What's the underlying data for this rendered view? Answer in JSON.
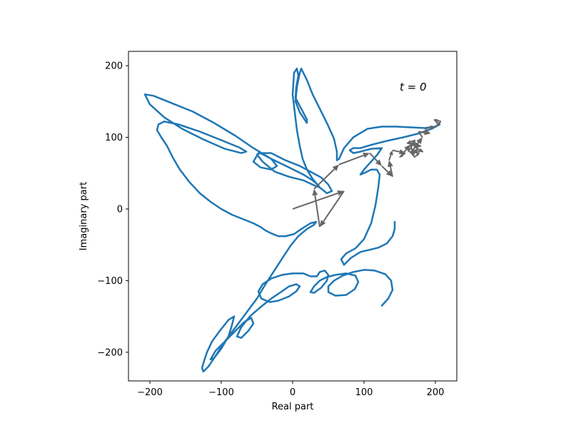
{
  "chart_data": {
    "type": "line",
    "title": "",
    "xlabel": "Real part",
    "ylabel": "Imaginary part",
    "xlim": [
      -230,
      230
    ],
    "ylim": [
      -240,
      220
    ],
    "x_ticks": [
      -200,
      -100,
      0,
      100,
      200
    ],
    "x_tick_labels": [
      "−200",
      "−100",
      "0",
      "100",
      "200"
    ],
    "y_ticks": [
      -200,
      -100,
      0,
      100,
      200
    ],
    "y_tick_labels": [
      "−200",
      "−100",
      "0",
      "100",
      "200"
    ],
    "grid": false,
    "annotation": {
      "text": "t = 0",
      "x": 150,
      "y": 165
    },
    "colors": {
      "curve": "#1f77b4",
      "arrows": "#666666"
    },
    "series": [
      {
        "points": [
          [
            125,
            -135
          ],
          [
            134,
            -125
          ],
          [
            140,
            -113
          ],
          [
            138,
            -100
          ],
          [
            130,
            -91
          ],
          [
            115,
            -86
          ],
          [
            100,
            -85
          ],
          [
            85,
            -88
          ],
          [
            70,
            -93
          ],
          [
            58,
            -100
          ],
          [
            50,
            -108
          ],
          [
            50,
            -116
          ],
          [
            60,
            -121
          ],
          [
            75,
            -120
          ],
          [
            87,
            -112
          ],
          [
            92,
            -102
          ],
          [
            88,
            -93
          ],
          [
            75,
            -90
          ],
          [
            60,
            -92
          ],
          [
            48,
            -95
          ],
          [
            38,
            -100
          ],
          [
            30,
            -108
          ],
          [
            25,
            -116
          ],
          [
            30,
            -117
          ],
          [
            40,
            -110
          ],
          [
            48,
            -100
          ],
          [
            50,
            -92
          ],
          [
            45,
            -86
          ],
          [
            38,
            -88
          ],
          [
            34,
            -94
          ],
          [
            25,
            -94
          ],
          [
            15,
            -90
          ],
          [
            0,
            -90
          ],
          [
            -15,
            -92
          ],
          [
            -30,
            -97
          ],
          [
            -42,
            -105
          ],
          [
            -48,
            -115
          ],
          [
            -44,
            -125
          ],
          [
            -32,
            -130
          ],
          [
            -20,
            -128
          ],
          [
            -5,
            -122
          ],
          [
            5,
            -115
          ],
          [
            10,
            -108
          ],
          [
            5,
            -105
          ],
          [
            -5,
            -108
          ],
          [
            -15,
            -115
          ],
          [
            -30,
            -125
          ],
          [
            -45,
            -137
          ],
          [
            -60,
            -150
          ],
          [
            -72,
            -165
          ],
          [
            -78,
            -178
          ],
          [
            -72,
            -180
          ],
          [
            -62,
            -170
          ],
          [
            -55,
            -160
          ],
          [
            -58,
            -152
          ],
          [
            -68,
            -158
          ],
          [
            -80,
            -170
          ],
          [
            -95,
            -185
          ],
          [
            -108,
            -198
          ],
          [
            -115,
            -210
          ],
          [
            -110,
            -208
          ],
          [
            -100,
            -195
          ],
          [
            -90,
            -178
          ],
          [
            -85,
            -162
          ],
          [
            -82,
            -150
          ],
          [
            -90,
            -155
          ],
          [
            -102,
            -170
          ],
          [
            -113,
            -185
          ],
          [
            -120,
            -200
          ],
          [
            -124,
            -212
          ],
          [
            -127,
            -222
          ],
          [
            -125,
            -227
          ],
          [
            -118,
            -220
          ],
          [
            -108,
            -205
          ],
          [
            -95,
            -185
          ],
          [
            -80,
            -165
          ],
          [
            -65,
            -145
          ],
          [
            -50,
            -125
          ],
          [
            -38,
            -105
          ],
          [
            -25,
            -85
          ],
          [
            -12,
            -65
          ],
          [
            -2,
            -50
          ],
          [
            8,
            -38
          ],
          [
            20,
            -28
          ],
          [
            30,
            -22
          ],
          [
            33,
            -18
          ],
          [
            25,
            -20
          ],
          [
            12,
            -28
          ],
          [
            2,
            -35
          ],
          [
            -10,
            -38
          ],
          [
            -20,
            -38
          ],
          [
            -30,
            -34
          ],
          [
            -38,
            -30
          ],
          [
            -45,
            -25
          ],
          [
            -55,
            -20
          ],
          [
            -70,
            -14
          ],
          [
            -85,
            -8
          ],
          [
            -100,
            0
          ],
          [
            -115,
            10
          ],
          [
            -130,
            22
          ],
          [
            -145,
            38
          ],
          [
            -158,
            55
          ],
          [
            -168,
            72
          ],
          [
            -176,
            88
          ],
          [
            -184,
            100
          ],
          [
            -190,
            110
          ],
          [
            -188,
            118
          ],
          [
            -180,
            122
          ],
          [
            -160,
            118
          ],
          [
            -130,
            108
          ],
          [
            -100,
            96
          ],
          [
            -75,
            86
          ],
          [
            -65,
            80
          ],
          [
            -72,
            78
          ],
          [
            -95,
            84
          ],
          [
            -125,
            97
          ],
          [
            -155,
            112
          ],
          [
            -180,
            128
          ],
          [
            -200,
            146
          ],
          [
            -207,
            160
          ],
          [
            -195,
            158
          ],
          [
            -170,
            148
          ],
          [
            -140,
            136
          ],
          [
            -110,
            120
          ],
          [
            -80,
            102
          ],
          [
            -55,
            85
          ],
          [
            -30,
            70
          ],
          [
            -5,
            58
          ],
          [
            15,
            48
          ],
          [
            28,
            40
          ],
          [
            35,
            34
          ],
          [
            38,
            30
          ],
          [
            30,
            33
          ],
          [
            15,
            40
          ],
          [
            -5,
            45
          ],
          [
            -25,
            52
          ],
          [
            -42,
            66
          ],
          [
            -50,
            76
          ],
          [
            -45,
            78
          ],
          [
            -30,
            70
          ],
          [
            -22,
            60
          ],
          [
            -30,
            55
          ],
          [
            -45,
            58
          ],
          [
            -55,
            66
          ],
          [
            -48,
            78
          ],
          [
            -30,
            78
          ],
          [
            -10,
            68
          ],
          [
            10,
            60
          ],
          [
            25,
            52
          ],
          [
            40,
            44
          ],
          [
            50,
            34
          ],
          [
            55,
            25
          ],
          [
            48,
            22
          ],
          [
            38,
            30
          ],
          [
            28,
            42
          ],
          [
            20,
            55
          ],
          [
            14,
            70
          ],
          [
            10,
            88
          ],
          [
            6,
            110
          ],
          [
            3,
            135
          ],
          [
            0,
            160
          ],
          [
            2,
            190
          ],
          [
            6,
            196
          ],
          [
            8,
            186
          ],
          [
            5,
            170
          ],
          [
            4,
            155
          ],
          [
            12,
            140
          ],
          [
            20,
            125
          ],
          [
            20,
            120
          ],
          [
            10,
            135
          ],
          [
            4,
            150
          ],
          [
            6,
            170
          ],
          [
            10,
            190
          ],
          [
            12,
            196
          ],
          [
            20,
            180
          ],
          [
            28,
            160
          ],
          [
            38,
            140
          ],
          [
            48,
            120
          ],
          [
            58,
            98
          ],
          [
            62,
            80
          ],
          [
            62,
            68
          ],
          [
            65,
            70
          ],
          [
            72,
            85
          ],
          [
            85,
            100
          ],
          [
            105,
            112
          ],
          [
            125,
            115
          ],
          [
            145,
            115
          ],
          [
            165,
            114
          ],
          [
            185,
            113
          ],
          [
            200,
            115
          ],
          [
            206,
            118
          ],
          [
            195,
            112
          ],
          [
            175,
            105
          ],
          [
            155,
            100
          ],
          [
            132,
            95
          ],
          [
            112,
            90
          ],
          [
            95,
            85
          ],
          [
            85,
            85
          ],
          [
            80,
            82
          ],
          [
            85,
            78
          ],
          [
            95,
            80
          ],
          [
            110,
            84
          ],
          [
            125,
            85
          ],
          [
            118,
            75
          ],
          [
            108,
            64
          ],
          [
            100,
            55
          ],
          [
            95,
            48
          ],
          [
            100,
            50
          ],
          [
            110,
            55
          ],
          [
            118,
            55
          ],
          [
            122,
            48
          ],
          [
            120,
            30
          ],
          [
            116,
            5
          ],
          [
            110,
            -20
          ],
          [
            100,
            -42
          ],
          [
            88,
            -55
          ],
          [
            75,
            -62
          ],
          [
            68,
            -70
          ],
          [
            72,
            -78
          ],
          [
            82,
            -68
          ],
          [
            95,
            -60
          ],
          [
            108,
            -57
          ],
          [
            120,
            -54
          ],
          [
            132,
            -48
          ],
          [
            140,
            -38
          ],
          [
            143,
            -28
          ],
          [
            143,
            -18
          ]
        ]
      }
    ],
    "arrows": [
      [
        [
          0,
          0
        ],
        [
          72,
          25
        ]
      ],
      [
        [
          72,
          25
        ],
        [
          38,
          -25
        ]
      ],
      [
        [
          38,
          -25
        ],
        [
          30,
          28
        ]
      ],
      [
        [
          30,
          28
        ],
        [
          65,
          62
        ]
      ],
      [
        [
          65,
          62
        ],
        [
          108,
          78
        ]
      ],
      [
        [
          108,
          78
        ],
        [
          125,
          60
        ]
      ],
      [
        [
          125,
          60
        ],
        [
          140,
          45
        ]
      ],
      [
        [
          140,
          45
        ],
        [
          135,
          68
        ]
      ],
      [
        [
          135,
          68
        ],
        [
          140,
          82
        ]
      ],
      [
        [
          140,
          82
        ],
        [
          158,
          78
        ]
      ],
      [
        [
          158,
          78
        ],
        [
          150,
          72
        ]
      ],
      [
        [
          150,
          72
        ],
        [
          165,
          90
        ]
      ],
      [
        [
          165,
          90
        ],
        [
          170,
          72
        ]
      ],
      [
        [
          170,
          72
        ],
        [
          178,
          78
        ]
      ],
      [
        [
          178,
          78
        ],
        [
          162,
          80
        ]
      ],
      [
        [
          162,
          80
        ],
        [
          172,
          96
        ]
      ],
      [
        [
          172,
          96
        ],
        [
          160,
          92
        ]
      ],
      [
        [
          160,
          92
        ],
        [
          180,
          88
        ]
      ],
      [
        [
          180,
          88
        ],
        [
          172,
          86
        ]
      ],
      [
        [
          172,
          86
        ],
        [
          183,
          80
        ]
      ],
      [
        [
          183,
          80
        ],
        [
          168,
          82
        ]
      ],
      [
        [
          168,
          82
        ],
        [
          182,
          100
        ]
      ],
      [
        [
          182,
          100
        ],
        [
          176,
          108
        ]
      ],
      [
        [
          176,
          108
        ],
        [
          192,
          105
        ]
      ],
      [
        [
          192,
          105
        ],
        [
          185,
          112
        ]
      ],
      [
        [
          185,
          112
        ],
        [
          200,
          115
        ]
      ],
      [
        [
          200,
          115
        ],
        [
          208,
          122
        ]
      ],
      [
        [
          208,
          122
        ],
        [
          198,
          125
        ]
      ],
      [
        [
          198,
          125
        ],
        [
          205,
          118
        ]
      ]
    ]
  }
}
